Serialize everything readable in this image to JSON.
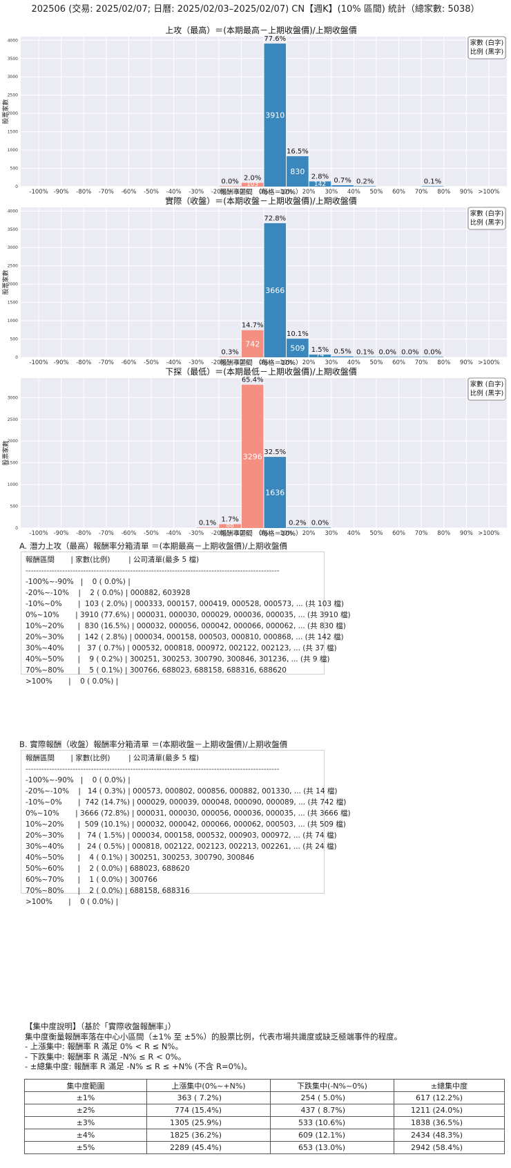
{
  "page_title": "202506 (交易: 2025/02/07; 日曆: 2025/02/03–2025/02/07) CN【週K】(10% 區間) 統計（總家數: 5038）",
  "legend_lines": [
    "家數 (白字)",
    "比例 (黑字)"
  ],
  "colors": {
    "positive": "#3a87bd",
    "negative": "#f58f82",
    "plot_bg": "#ebebf3",
    "grid": "#ffffff"
  },
  "chart_data": [
    {
      "type": "bar",
      "title": "上攻（最高）＝(本期最高－上期收盤價)/上期收盤價",
      "xlabel": "報酬率區間 （每格＝10%）",
      "ylabel": "股票家數",
      "categories": [
        "-100%",
        "-90%",
        "-80%",
        "-70%",
        "-60%",
        "-50%",
        "-40%",
        "-30%",
        "-20%",
        "-10%",
        "0%",
        "10%",
        "20%",
        "30%",
        "40%",
        "50%",
        "60%",
        "70%",
        "80%",
        "90%",
        ">100%"
      ],
      "yticks": [
        0,
        500,
        1000,
        1500,
        2000,
        2500,
        3000,
        3500,
        4000
      ],
      "ylim": [
        0,
        4100
      ],
      "bars": [
        {
          "x": -20,
          "count": 2,
          "pct": "0.0%",
          "sign": "neg"
        },
        {
          "x": -10,
          "count": 103,
          "pct": "2.0%",
          "sign": "neg"
        },
        {
          "x": 0,
          "count": 3910,
          "pct": "77.6%",
          "sign": "pos"
        },
        {
          "x": 10,
          "count": 830,
          "pct": "16.5%",
          "sign": "pos"
        },
        {
          "x": 20,
          "count": 142,
          "pct": "2.8%",
          "sign": "pos"
        },
        {
          "x": 30,
          "count": 37,
          "pct": "0.7%",
          "sign": "pos"
        },
        {
          "x": 40,
          "count": 9,
          "pct": "0.2%",
          "sign": "pos"
        },
        {
          "x": 70,
          "count": 5,
          "pct": "0.1%",
          "sign": "pos"
        }
      ],
      "legend": "top-right"
    },
    {
      "type": "bar",
      "title": "實際（收盤）＝(本期收盤－上期收盤價)/上期收盤價",
      "xlabel": "報酬率區間 （每格＝10%）",
      "ylabel": "股票家數",
      "categories": [
        "-100%",
        "-90%",
        "-80%",
        "-70%",
        "-60%",
        "-50%",
        "-40%",
        "-30%",
        "-20%",
        "-10%",
        "0%",
        "10%",
        "20%",
        "30%",
        "40%",
        "50%",
        "60%",
        "70%",
        "80%",
        "90%",
        ">100%"
      ],
      "yticks": [
        0,
        500,
        1000,
        1500,
        2000,
        2500,
        3000,
        3500,
        4000
      ],
      "ylim": [
        0,
        4100
      ],
      "bars": [
        {
          "x": -20,
          "count": 14,
          "pct": "0.3%",
          "sign": "neg"
        },
        {
          "x": -10,
          "count": 742,
          "pct": "14.7%",
          "sign": "neg"
        },
        {
          "x": 0,
          "count": 3666,
          "pct": "72.8%",
          "sign": "pos"
        },
        {
          "x": 10,
          "count": 509,
          "pct": "10.1%",
          "sign": "pos"
        },
        {
          "x": 20,
          "count": 74,
          "pct": "1.5%",
          "sign": "pos"
        },
        {
          "x": 30,
          "count": 24,
          "pct": "0.5%",
          "sign": "pos"
        },
        {
          "x": 40,
          "count": 4,
          "pct": "0.1%",
          "sign": "pos"
        },
        {
          "x": 50,
          "count": 2,
          "pct": "0.0%",
          "sign": "pos"
        },
        {
          "x": 60,
          "count": 1,
          "pct": "0.0%",
          "sign": "pos"
        },
        {
          "x": 70,
          "count": 2,
          "pct": "0.0%",
          "sign": "pos"
        }
      ],
      "legend": "top-right"
    },
    {
      "type": "bar",
      "title": "下探（最低）＝(本期最低－上期收盤價)/上期收盤價",
      "xlabel": "報酬率區間 （每格＝10%）",
      "ylabel": "股票家數",
      "categories": [
        "-100%",
        "-90%",
        "-80%",
        "-70%",
        "-60%",
        "-50%",
        "-40%",
        "-30%",
        "-20%",
        "-10%",
        "0%",
        "10%",
        "20%",
        "30%",
        "40%",
        "50%",
        "60%",
        "70%",
        "80%",
        "90%",
        ">100%"
      ],
      "yticks": [
        0,
        500,
        1000,
        1500,
        2000,
        2500,
        3000
      ],
      "ylim": [
        0,
        3450
      ],
      "bars": [
        {
          "x": -30,
          "count": 5,
          "pct": "0.1%",
          "sign": "neg"
        },
        {
          "x": -20,
          "count": 88,
          "pct": "1.7%",
          "sign": "neg"
        },
        {
          "x": -10,
          "count": 3296,
          "pct": "65.4%",
          "sign": "neg"
        },
        {
          "x": 0,
          "count": 1636,
          "pct": "32.5%",
          "sign": "pos"
        },
        {
          "x": 10,
          "count": 11,
          "pct": "0.2%",
          "sign": "pos"
        },
        {
          "x": 20,
          "count": 2,
          "pct": "0.0%",
          "sign": "pos"
        }
      ],
      "legend": "top-right"
    }
  ],
  "list_a": {
    "title": "A. 潛力上攻（最高）報酬率分箱清單 ＝(本期最高－上期收盤價)/上期收盤價",
    "header": "報酬區間       | 家數(比例)        | 公司清單(最多 5 檔)",
    "separator": "-------------------------------------------------------------------------------------------------",
    "rows": [
      "-100%~-90%   |    0 ( 0.0%) |",
      "-20%~-10%    |    2 ( 0.0%) | 000882, 603928",
      "-10%~0%       |  103 ( 2.0%) | 000333, 000157, 000419, 000528, 000573, ... (共 103 檔)",
      "0%~10%       | 3910 (77.6%) | 000031, 000030, 000029, 000036, 000035, ... (共 3910 檔)",
      "10%~20%      |  830 (16.5%) | 000032, 000056, 000042, 000066, 000062, ... (共 830 檔)",
      "20%~30%      |  142 ( 2.8%) | 000034, 000158, 000503, 000810, 000868, ... (共 142 檔)",
      "30%~40%      |   37 ( 0.7%) | 000532, 000818, 000972, 002122, 002123, ... (共 37 檔)",
      "40%~50%      |    9 ( 0.2%) | 300251, 300253, 300790, 300846, 301236, ... (共 9 檔)",
      "70%~80%      |    5 ( 0.1%) | 300766, 688023, 688158, 688316, 688620",
      ">100%       |    0 ( 0.0%) |"
    ]
  },
  "list_b": {
    "title": "B. 實際報酬（收盤）報酬率分箱清單 ＝(本期收盤－上期收盤價)/上期收盤價",
    "header": "報酬區間       | 家數(比例)        | 公司清單(最多 5 檔)",
    "separator": "-------------------------------------------------------------------------------------------------",
    "rows": [
      "-100%~-90%   |    0 ( 0.0%) |",
      "-20%~-10%    |   14 ( 0.3%) | 000573, 000802, 000856, 000882, 001330, ... (共 14 檔)",
      "-10%~0%       |  742 (14.7%) | 000029, 000039, 000048, 000090, 000089, ... (共 742 檔)",
      "0%~10%       | 3666 (72.8%) | 000031, 000030, 000056, 000036, 000035, ... (共 3666 檔)",
      "10%~20%      |  509 (10.1%) | 000032, 000042, 000066, 000062, 000503, ... (共 509 檔)",
      "20%~30%      |   74 ( 1.5%) | 000034, 000158, 000532, 000903, 000972, ... (共 74 檔)",
      "30%~40%      |   24 ( 0.5%) | 000818, 002122, 002123, 002213, 002261, ... (共 24 檔)",
      "40%~50%      |    4 ( 0.1%) | 300251, 300253, 300790, 300846",
      "50%~60%      |    2 ( 0.0%) | 688023, 688620",
      "60%~70%      |    1 ( 0.0%) | 300766",
      "70%~80%      |    2 ( 0.0%) | 688158, 688316",
      ">100%       |    0 ( 0.0%) |"
    ]
  },
  "concentration": {
    "heading": "【集中度說明】（基於「實際收盤報酬率」）",
    "lines": [
      "集中度衡量報酬率落在中心小區間（±1% 至 ±5%）的股票比例，代表市場共識度或缺乏極端事件的程度。",
      " - 上漲集中: 報酬率 R 滿足 0% < R ≤ N%。",
      " - 下跌集中: 報酬率 R 滿足 -N% ≤ R < 0%。",
      " - ±總集中度: 報酬率 R 滿足 -N% ≤ R ≤ +N% (不含 R=0%)。"
    ],
    "table": {
      "headers": [
        "集中度範圍",
        "上漲集中(0%~+N%)",
        "下跌集中(-N%~0%)",
        "±總集中度"
      ],
      "rows": [
        [
          "±1%",
          "363 ( 7.2%)",
          "254 ( 5.0%)",
          "617 (12.2%)"
        ],
        [
          "±2%",
          "774 (15.4%)",
          "437 ( 8.7%)",
          "1211 (24.0%)"
        ],
        [
          "±3%",
          "1305 (25.9%)",
          "533 (10.6%)",
          "1838 (36.5%)"
        ],
        [
          "±4%",
          "1825 (36.2%)",
          "609 (12.1%)",
          "2434 (48.3%)"
        ],
        [
          "±5%",
          "2289 (45.4%)",
          "653 (13.0%)",
          "2942 (58.4%)"
        ]
      ]
    }
  }
}
